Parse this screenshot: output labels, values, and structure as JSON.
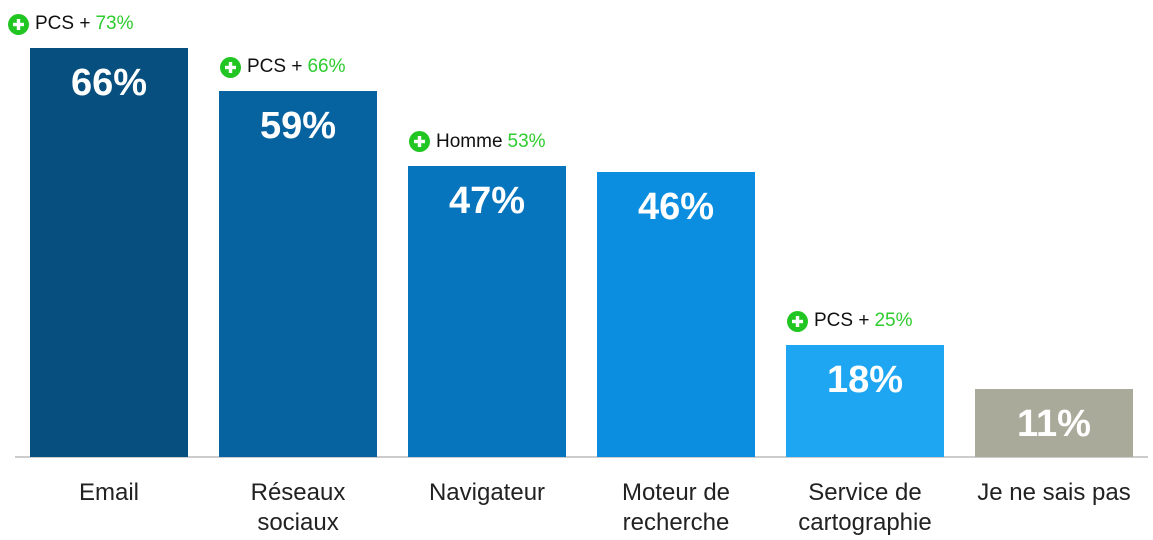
{
  "chart_data": {
    "type": "bar",
    "categories": [
      "Email",
      "Réseaux\nsociaux",
      "Navigateur",
      "Moteur de\nrecherche",
      "Service de\ncartographie",
      "Je ne sais pas"
    ],
    "values": [
      66,
      59,
      47,
      46,
      18,
      11
    ],
    "value_labels": [
      "66%",
      "59%",
      "47%",
      "46%",
      "18%",
      "11%"
    ],
    "colors": [
      "#064f7e",
      "#0663a0",
      "#0775be",
      "#0b8ee0",
      "#1fa6f2",
      "#aaaa9b"
    ],
    "annotations": [
      {
        "text": "PCS +",
        "value": 73,
        "value_label": "73%"
      },
      {
        "text": "PCS +",
        "value": 66,
        "value_label": "66%"
      },
      {
        "text": "Homme",
        "value": 53,
        "value_label": "53%"
      },
      null,
      {
        "text": "PCS +",
        "value": 25,
        "value_label": "25%"
      },
      null
    ]
  }
}
